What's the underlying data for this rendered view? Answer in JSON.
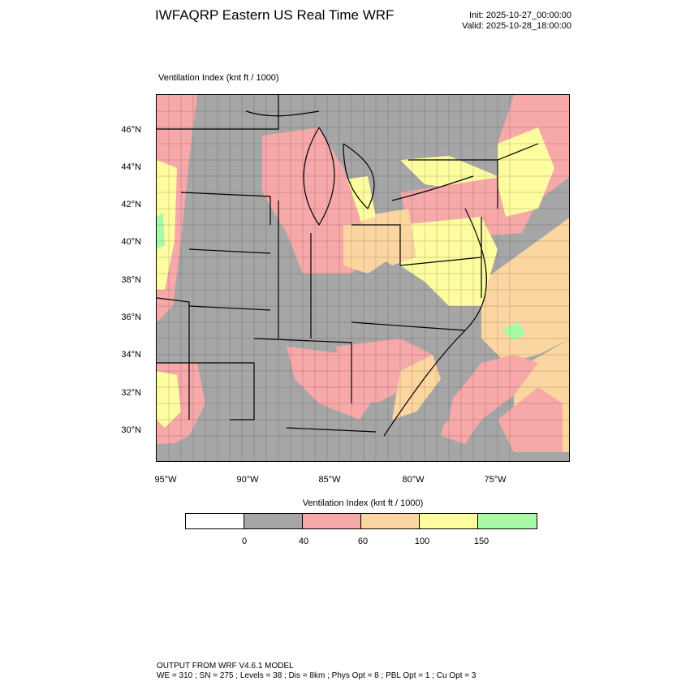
{
  "header": {
    "title": "IWFAQRP Eastern US Real Time WRF",
    "init": "Init: 2025-10-27_00:00:00",
    "valid": "Valid: 2025-10-28_18:00:00"
  },
  "field": {
    "title": "Ventilation Index   (knt ft / 1000)"
  },
  "map": {
    "lat_labels": [
      "46°N",
      "44°N",
      "42°N",
      "40°N",
      "38°N",
      "36°N",
      "34°N",
      "32°N",
      "30°N"
    ],
    "lon_labels": [
      "95°W",
      "90°W",
      "85°W",
      "80°W",
      "75°W"
    ],
    "colors": {
      "land_low": "#a6a6a6",
      "ocean": "#a6a6a6",
      "pink": "#f7a8a8",
      "orange": "#fcd6a0",
      "yellow": "#fdfda0",
      "green": "#a6fca6"
    }
  },
  "legend": {
    "title": "Ventilation Index  (knt ft / 1000)",
    "colors": [
      "#ffffff",
      "#a6a6a6",
      "#f7a8a8",
      "#fcd6a0",
      "#fdfda0",
      "#a6fca6"
    ],
    "labels": [
      "0",
      "40",
      "60",
      "100",
      "150"
    ]
  },
  "footer": {
    "line1": "OUTPUT FROM WRF V4.6.1 MODEL",
    "line2": "WE = 310 ; SN = 275 ; Levels = 38 ; Dis = 8km ; Phys Opt = 8 ; PBL Opt = 1 ; Cu Opt = 3"
  }
}
